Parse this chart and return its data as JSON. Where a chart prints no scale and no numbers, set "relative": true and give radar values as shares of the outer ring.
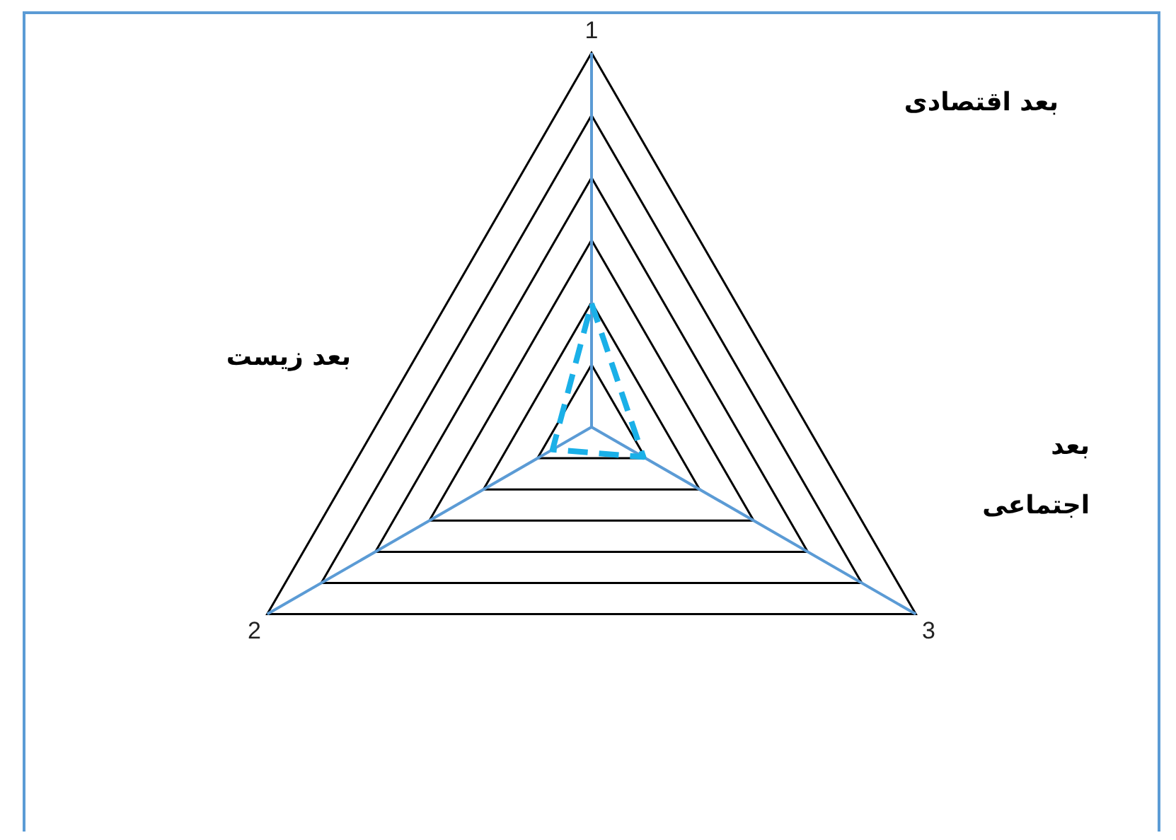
{
  "chart_data": {
    "type": "radar",
    "relative": true,
    "categories": [
      "1",
      "3",
      "2"
    ],
    "series": [
      {
        "color": "#1ab0e8",
        "values": [
          0.33,
          0.16,
          0.12
        ]
      }
    ],
    "line_style": "dashed",
    "marker": "none",
    "grid": true,
    "legend": false,
    "annotations": [
      "بعد اقتصادی",
      "بعد اجتماعی",
      "بعد زیست"
    ]
  }
}
